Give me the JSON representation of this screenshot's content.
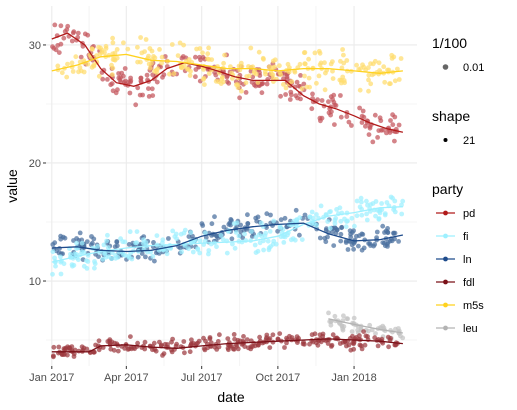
{
  "chart_data": {
    "type": "scatter",
    "xlabel": "date",
    "ylabel": "value",
    "x_range": [
      "2016-12-25",
      "2018-03-18"
    ],
    "y_range": [
      2.8,
      33.3
    ],
    "x_ticks": [
      {
        "date": "2017-01-01",
        "label": "Jan 2017"
      },
      {
        "date": "2017-04-01",
        "label": "Apr 2017"
      },
      {
        "date": "2017-07-01",
        "label": "Jul 2017"
      },
      {
        "date": "2017-10-01",
        "label": "Oct 2017"
      },
      {
        "date": "2018-01-01",
        "label": "Jan 2018"
      }
    ],
    "y_ticks": [
      10,
      20,
      30
    ],
    "grid": true,
    "legend_position": "right",
    "legends": [
      {
        "title": "1/100",
        "entries": [
          {
            "label": "0.01",
            "color": "#666666",
            "size": "large"
          }
        ]
      },
      {
        "title": "shape",
        "entries": [
          {
            "label": "21",
            "color": "#000000",
            "size": "small"
          }
        ]
      },
      {
        "title": "party",
        "entries": [
          {
            "label": "pd",
            "color": "#b11a1a"
          },
          {
            "label": "fi",
            "color": "#9ef0ff"
          },
          {
            "label": "ln",
            "color": "#1f4c8c"
          },
          {
            "label": "fdl",
            "color": "#7a1018"
          },
          {
            "label": "m5s",
            "color": "#ffd21f"
          },
          {
            "label": "leu",
            "color": "#b3b3b3"
          }
        ]
      }
    ],
    "series": [
      {
        "name": "pd",
        "color": "#b11a1a",
        "point_color": "#c4545c",
        "spread": 1.0,
        "trend": [
          [
            "2017-01-01",
            30.5
          ],
          [
            "2017-01-20",
            31.0
          ],
          [
            "2017-02-10",
            30.0
          ],
          [
            "2017-03-01",
            28.0
          ],
          [
            "2017-03-20",
            26.8
          ],
          [
            "2017-04-10",
            26.5
          ],
          [
            "2017-05-01",
            27.0
          ],
          [
            "2017-05-20",
            28.0
          ],
          [
            "2017-06-10",
            28.5
          ],
          [
            "2017-07-01",
            28.2
          ],
          [
            "2017-07-20",
            27.8
          ],
          [
            "2017-08-10",
            27.3
          ],
          [
            "2017-09-01",
            27.0
          ],
          [
            "2017-09-20",
            27.0
          ],
          [
            "2017-10-10",
            27.0
          ],
          [
            "2017-11-01",
            25.7
          ],
          [
            "2017-11-20",
            25.0
          ],
          [
            "2017-12-10",
            24.6
          ],
          [
            "2018-01-01",
            24.0
          ],
          [
            "2018-01-20",
            23.4
          ],
          [
            "2018-02-10",
            22.9
          ],
          [
            "2018-03-01",
            22.6
          ]
        ]
      },
      {
        "name": "fi",
        "color": "#9ef0ff",
        "point_color": "#9ef0ff",
        "spread": 0.9,
        "trend": [
          [
            "2017-01-01",
            11.6
          ],
          [
            "2017-02-01",
            12.1
          ],
          [
            "2017-03-01",
            12.5
          ],
          [
            "2017-04-01",
            12.8
          ],
          [
            "2017-05-01",
            13.0
          ],
          [
            "2017-06-01",
            13.1
          ],
          [
            "2017-07-01",
            13.2
          ],
          [
            "2017-08-01",
            13.3
          ],
          [
            "2017-09-01",
            13.4
          ],
          [
            "2017-10-01",
            13.8
          ],
          [
            "2017-11-01",
            14.8
          ],
          [
            "2017-12-01",
            15.5
          ],
          [
            "2018-01-01",
            15.8
          ],
          [
            "2018-02-01",
            16.2
          ],
          [
            "2018-03-01",
            16.3
          ]
        ]
      },
      {
        "name": "ln",
        "color": "#1f4c8c",
        "point_color": "#496f9e",
        "spread": 0.8,
        "trend": [
          [
            "2017-01-01",
            12.8
          ],
          [
            "2017-02-01",
            12.9
          ],
          [
            "2017-03-01",
            12.6
          ],
          [
            "2017-04-01",
            12.5
          ],
          [
            "2017-05-01",
            12.6
          ],
          [
            "2017-06-01",
            13.0
          ],
          [
            "2017-07-01",
            13.8
          ],
          [
            "2017-08-01",
            14.3
          ],
          [
            "2017-09-01",
            14.6
          ],
          [
            "2017-10-01",
            14.8
          ],
          [
            "2017-11-01",
            14.9
          ],
          [
            "2017-12-01",
            14.0
          ],
          [
            "2018-01-01",
            13.4
          ],
          [
            "2018-02-01",
            13.5
          ],
          [
            "2018-03-01",
            13.9
          ]
        ]
      },
      {
        "name": "fdl",
        "color": "#7a1018",
        "point_color": "#9c3a40",
        "spread": 0.5,
        "trend": [
          [
            "2017-01-01",
            4.0
          ],
          [
            "2017-02-15",
            4.0
          ],
          [
            "2017-03-01",
            4.5
          ],
          [
            "2017-04-01",
            4.6
          ],
          [
            "2017-05-01",
            4.4
          ],
          [
            "2017-06-01",
            4.3
          ],
          [
            "2017-07-01",
            4.5
          ],
          [
            "2017-08-01",
            4.7
          ],
          [
            "2017-09-01",
            4.8
          ],
          [
            "2017-10-01",
            4.9
          ],
          [
            "2017-11-01",
            5.0
          ],
          [
            "2017-12-01",
            5.1
          ],
          [
            "2018-01-01",
            5.0
          ],
          [
            "2018-02-01",
            4.9
          ],
          [
            "2018-03-01",
            4.7
          ]
        ]
      },
      {
        "name": "m5s",
        "color": "#ffd21f",
        "point_color": "#ffdc6e",
        "spread": 1.1,
        "trend": [
          [
            "2017-01-01",
            27.8
          ],
          [
            "2017-02-01",
            28.3
          ],
          [
            "2017-03-01",
            29.0
          ],
          [
            "2017-04-01",
            29.2
          ],
          [
            "2017-05-01",
            28.7
          ],
          [
            "2017-06-01",
            28.6
          ],
          [
            "2017-07-01",
            28.3
          ],
          [
            "2017-08-01",
            28.0
          ],
          [
            "2017-09-01",
            28.0
          ],
          [
            "2017-10-01",
            27.8
          ],
          [
            "2017-11-01",
            28.0
          ],
          [
            "2017-12-01",
            28.0
          ],
          [
            "2018-01-01",
            27.8
          ],
          [
            "2018-02-01",
            27.6
          ],
          [
            "2018-03-01",
            27.8
          ]
        ]
      },
      {
        "name": "leu",
        "color": "#b3b3b3",
        "point_color": "#c4c4c4",
        "spread": 0.6,
        "trend": [
          [
            "2017-12-01",
            6.8
          ],
          [
            "2017-12-20",
            6.5
          ],
          [
            "2018-01-10",
            6.2
          ],
          [
            "2018-02-01",
            5.9
          ],
          [
            "2018-03-01",
            5.6
          ]
        ]
      }
    ]
  }
}
